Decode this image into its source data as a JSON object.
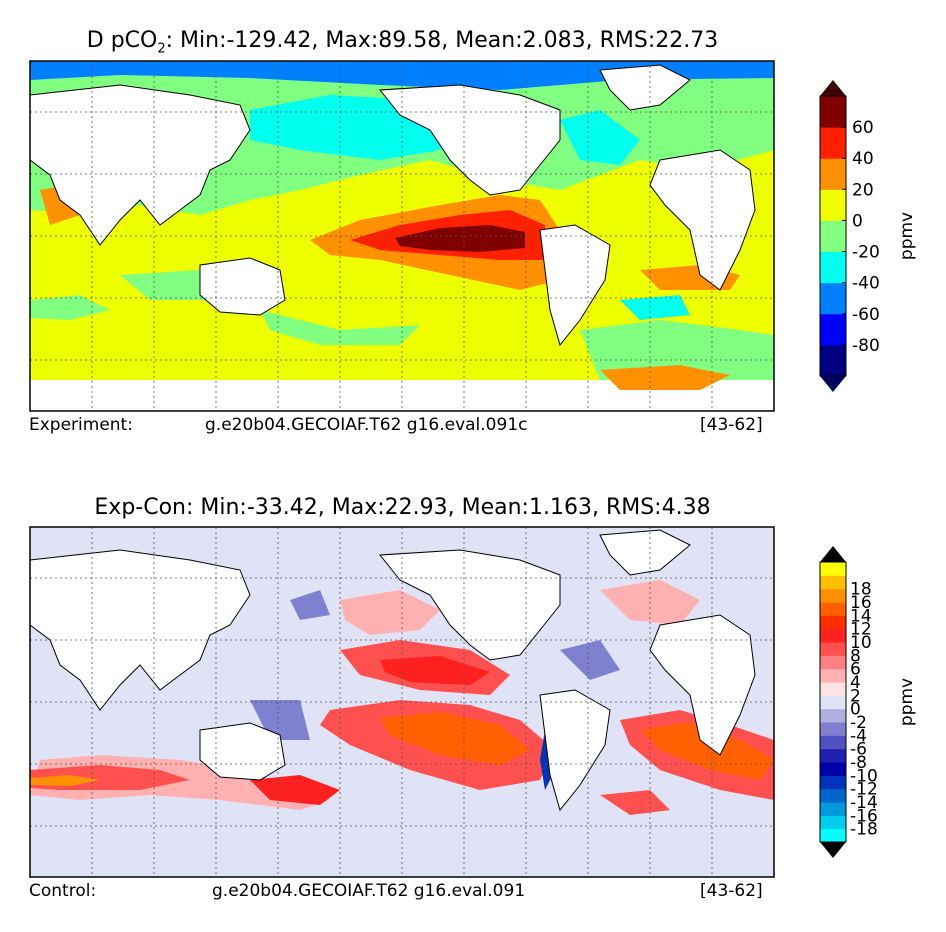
{
  "top_panel": {
    "title_prefix": "D pCO",
    "title_sub": "2",
    "title_stats": ": Min:-129.42, Max:89.58, Mean:2.083, RMS:22.73",
    "footer_left": "Experiment:",
    "footer_center": "g.e20b04.GECOIAF.T62 g16.eval.091c",
    "footer_right": "[43-62]"
  },
  "bottom_panel": {
    "title": "Exp-Con: Min:-33.42, Max:22.93, Mean:1.163, RMS:4.38",
    "footer_left": "Control:",
    "footer_center": "g.e20b04.GECOIAF.T62 g16.eval.091",
    "footer_right": "[43-62]"
  },
  "chart_data": [
    {
      "type": "contour-map",
      "title": "D pCO2: Min:-129.42, Max:89.58, Mean:2.083, RMS:22.73",
      "units": "ppmv",
      "stats": {
        "min": -129.42,
        "max": 89.58,
        "mean": 2.083,
        "rms": 22.73
      },
      "colorbar": {
        "levels": [
          -100,
          -80,
          -60,
          -40,
          -20,
          0,
          20,
          40,
          60,
          80
        ],
        "colors": [
          "#000080",
          "#0000ff",
          "#0080ff",
          "#00ffee",
          "#80ff80",
          "#eeff00",
          "#ff9000",
          "#ff2000",
          "#800000"
        ],
        "extend_low_color": "#000060",
        "extend_high_color": "#400000",
        "tick_labels": [
          "-80",
          "-60",
          "-40",
          "-20",
          "0",
          "20",
          "40",
          "60"
        ],
        "label": "ppmv"
      },
      "experiment": "g.e20b04.GECOIAF.T62 g16.eval.091c",
      "years": "[43-62]"
    },
    {
      "type": "contour-map",
      "title": "Exp-Con: Min:-33.42, Max:22.93, Mean:1.163, RMS:4.38",
      "units": "ppmv",
      "stats": {
        "min": -33.42,
        "max": 22.93,
        "mean": 1.163,
        "rms": 4.38
      },
      "colorbar": {
        "levels": [
          -20,
          -18,
          -16,
          -14,
          -12,
          -10,
          -8,
          -6,
          -4,
          -2,
          0,
          2,
          4,
          6,
          8,
          10,
          12,
          14,
          16,
          18,
          20
        ],
        "colors": [
          "#00ffff",
          "#00ccee",
          "#0099dd",
          "#0066cc",
          "#0033bb",
          "#0000aa",
          "#2020b0",
          "#5050c0",
          "#8080d0",
          "#b0b0e0",
          "#e0e2f5",
          "#ffe2e2",
          "#ffb0b0",
          "#ff8080",
          "#ff5050",
          "#ff2020",
          "#ff3000",
          "#ff6000",
          "#ff9000",
          "#ffc000",
          "#ffff00"
        ],
        "extend_low_color": "#000000",
        "extend_high_color": "#000000",
        "tick_labels": [
          "18",
          "16",
          "14",
          "12",
          "10",
          "8",
          "6",
          "4",
          "2",
          "0",
          "-2",
          "-4",
          "-6",
          "-8",
          "-10",
          "-12",
          "-14",
          "-16",
          "-18"
        ],
        "label": "ppmv"
      },
      "control": "g.e20b04.GECOIAF.T62 g16.eval.091",
      "years": "[43-62]"
    }
  ]
}
